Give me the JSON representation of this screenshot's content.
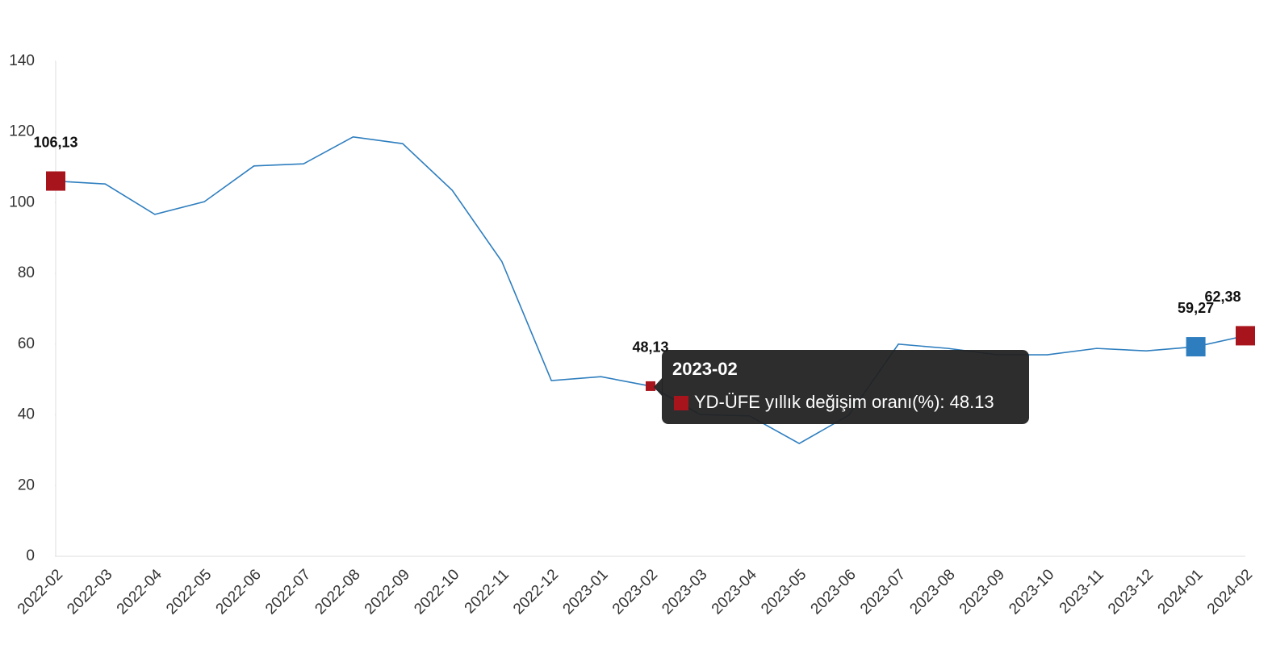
{
  "chart_data": {
    "type": "line",
    "categories": [
      "2022-02",
      "2022-03",
      "2022-04",
      "2022-05",
      "2022-06",
      "2022-07",
      "2022-08",
      "2022-09",
      "2022-10",
      "2022-11",
      "2022-12",
      "2023-01",
      "2023-02",
      "2023-03",
      "2023-04",
      "2023-05",
      "2023-06",
      "2023-07",
      "2023-08",
      "2023-09",
      "2023-10",
      "2023-11",
      "2023-12",
      "2024-01",
      "2024-02"
    ],
    "values": [
      106.13,
      105.3,
      96.7,
      100.3,
      110.4,
      111.0,
      118.6,
      116.7,
      103.5,
      83.4,
      49.7,
      50.8,
      48.13,
      40.1,
      39.7,
      31.9,
      39.9,
      60.0,
      58.8,
      57.0,
      57.0,
      58.8,
      58.1,
      59.27,
      62.38
    ],
    "value_labels": [
      "106,13",
      null,
      null,
      null,
      null,
      null,
      null,
      null,
      null,
      null,
      null,
      null,
      "48,13",
      null,
      null,
      null,
      null,
      null,
      null,
      null,
      null,
      null,
      null,
      "59,27",
      "62,38"
    ],
    "color": "#2e7ebf",
    "markers": [
      {
        "index": 0,
        "color": "#a8141b",
        "size": "large"
      },
      {
        "index": 12,
        "color": "#a8141b",
        "size": "small"
      },
      {
        "index": 23,
        "color": "#2e7ebf",
        "size": "large"
      },
      {
        "index": 24,
        "color": "#a8141b",
        "size": "large"
      }
    ],
    "ylim": [
      0,
      140
    ],
    "yticks": [
      0,
      20,
      40,
      60,
      80,
      100,
      120,
      140
    ],
    "grid": false,
    "tooltip": {
      "title": "2023-02",
      "text": "YD-ÜFE yıllık değişim oranı(%): 48.13",
      "color": "#a8141b"
    }
  }
}
